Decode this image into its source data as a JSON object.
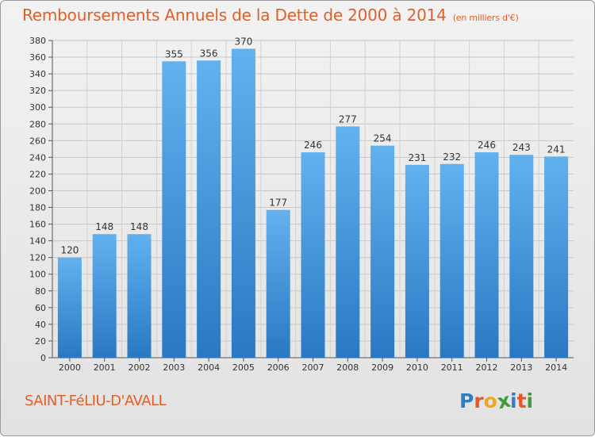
{
  "header": {
    "title": "Remboursements Annuels de la Dette de 2000 à 2014",
    "unit": "(en milliers d'€)"
  },
  "footer": {
    "commune": "SAINT-FéLIU-D'AVALL",
    "logo_letters": [
      "P",
      "r",
      "o",
      "x",
      "i",
      "t",
      "i"
    ],
    "logo_colors": [
      "#2d7fc3",
      "#e5562b",
      "#f2a61d",
      "#3e9d36",
      "#2d7fc3",
      "#e5562b",
      "#3e9d36"
    ]
  },
  "chart_data": {
    "type": "bar",
    "title": "Remboursements Annuels de la Dette de 2000 à 2014",
    "xlabel": "",
    "ylabel": "",
    "ylim": [
      0,
      380
    ],
    "ytick_step": 20,
    "grid": true,
    "categories": [
      "2000",
      "2001",
      "2002",
      "2003",
      "2004",
      "2005",
      "2006",
      "2007",
      "2008",
      "2009",
      "2010",
      "2011",
      "2012",
      "2013",
      "2014"
    ],
    "values": [
      120,
      148,
      148,
      355,
      356,
      370,
      177,
      246,
      277,
      254,
      231,
      232,
      246,
      243,
      241
    ],
    "bar_color": "#3d94dc"
  }
}
